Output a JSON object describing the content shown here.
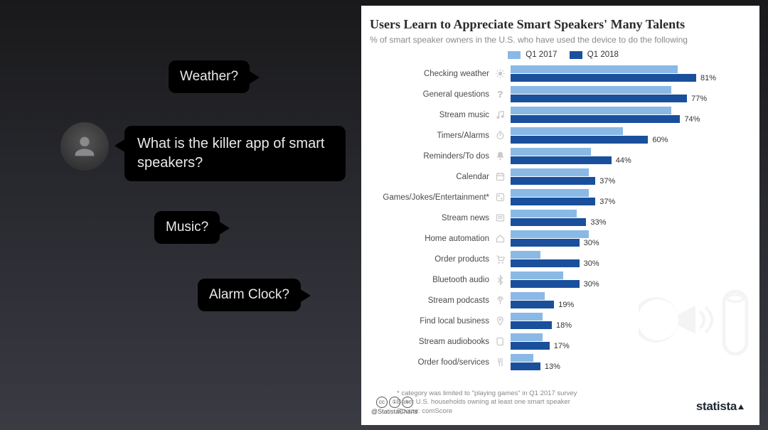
{
  "slide": {
    "question_main": "What is the killer app of smart speakers?",
    "bubble_weather": "Weather?",
    "bubble_music": "Music?",
    "bubble_alarm": "Alarm Clock?"
  },
  "chart": {
    "title": "Users Learn to Appreciate Smart Speakers' Many Talents",
    "subtitle": "% of smart speaker owners in the U.S. who have used the device to do the following",
    "type": "grouped horizontal bar",
    "xlim": [
      0,
      90
    ],
    "value_suffix": "%",
    "legend": {
      "series1": {
        "label": "Q1 2017",
        "color": "#8ab9e6"
      },
      "series2": {
        "label": "Q1 2018",
        "color": "#1a4f9c"
      }
    },
    "label_fontsize": 11.5,
    "value_fontsize": 11,
    "title_fontsize": 18,
    "subtitle_fontsize": 12,
    "background_color": "#ffffff",
    "icon_color": "#c9c9c9",
    "rows": [
      {
        "label": "Checking weather",
        "icon": "sun",
        "v2017": 73,
        "v2018": 81
      },
      {
        "label": "General questions",
        "icon": "question",
        "v2017": 70,
        "v2018": 77
      },
      {
        "label": "Stream music",
        "icon": "music",
        "v2017": 70,
        "v2018": 74
      },
      {
        "label": "Timers/Alarms",
        "icon": "timer",
        "v2017": 49,
        "v2018": 60
      },
      {
        "label": "Reminders/To dos",
        "icon": "bell",
        "v2017": 35,
        "v2018": 44
      },
      {
        "label": "Calendar",
        "icon": "calendar",
        "v2017": 34,
        "v2018": 37
      },
      {
        "label": "Games/Jokes/Entertainment*",
        "icon": "dice",
        "v2017": 34,
        "v2018": 37
      },
      {
        "label": "Stream news",
        "icon": "news",
        "v2017": 29,
        "v2018": 33
      },
      {
        "label": "Home automation",
        "icon": "home",
        "v2017": 34,
        "v2018": 30
      },
      {
        "label": "Order products",
        "icon": "cart",
        "v2017": 13,
        "v2018": 30
      },
      {
        "label": "Bluetooth audio",
        "icon": "bluetooth",
        "v2017": 23,
        "v2018": 30
      },
      {
        "label": "Stream podcasts",
        "icon": "podcast",
        "v2017": 15,
        "v2018": 19
      },
      {
        "label": "Find local business",
        "icon": "pin",
        "v2017": 14,
        "v2018": 18
      },
      {
        "label": "Stream audiobooks",
        "icon": "book",
        "v2017": 14,
        "v2018": 17
      },
      {
        "label": "Order food/services",
        "icon": "fork",
        "v2017": 10,
        "v2018": 13
      }
    ],
    "footnote1": "* category was limited to \"playing games\" in Q1 2017 survey",
    "footnote2": "Base: U.S. households owning at least one smart speaker",
    "source_label": "Source: comScore",
    "attribution_handle": "@StatistaCharts",
    "brand": "statista"
  }
}
